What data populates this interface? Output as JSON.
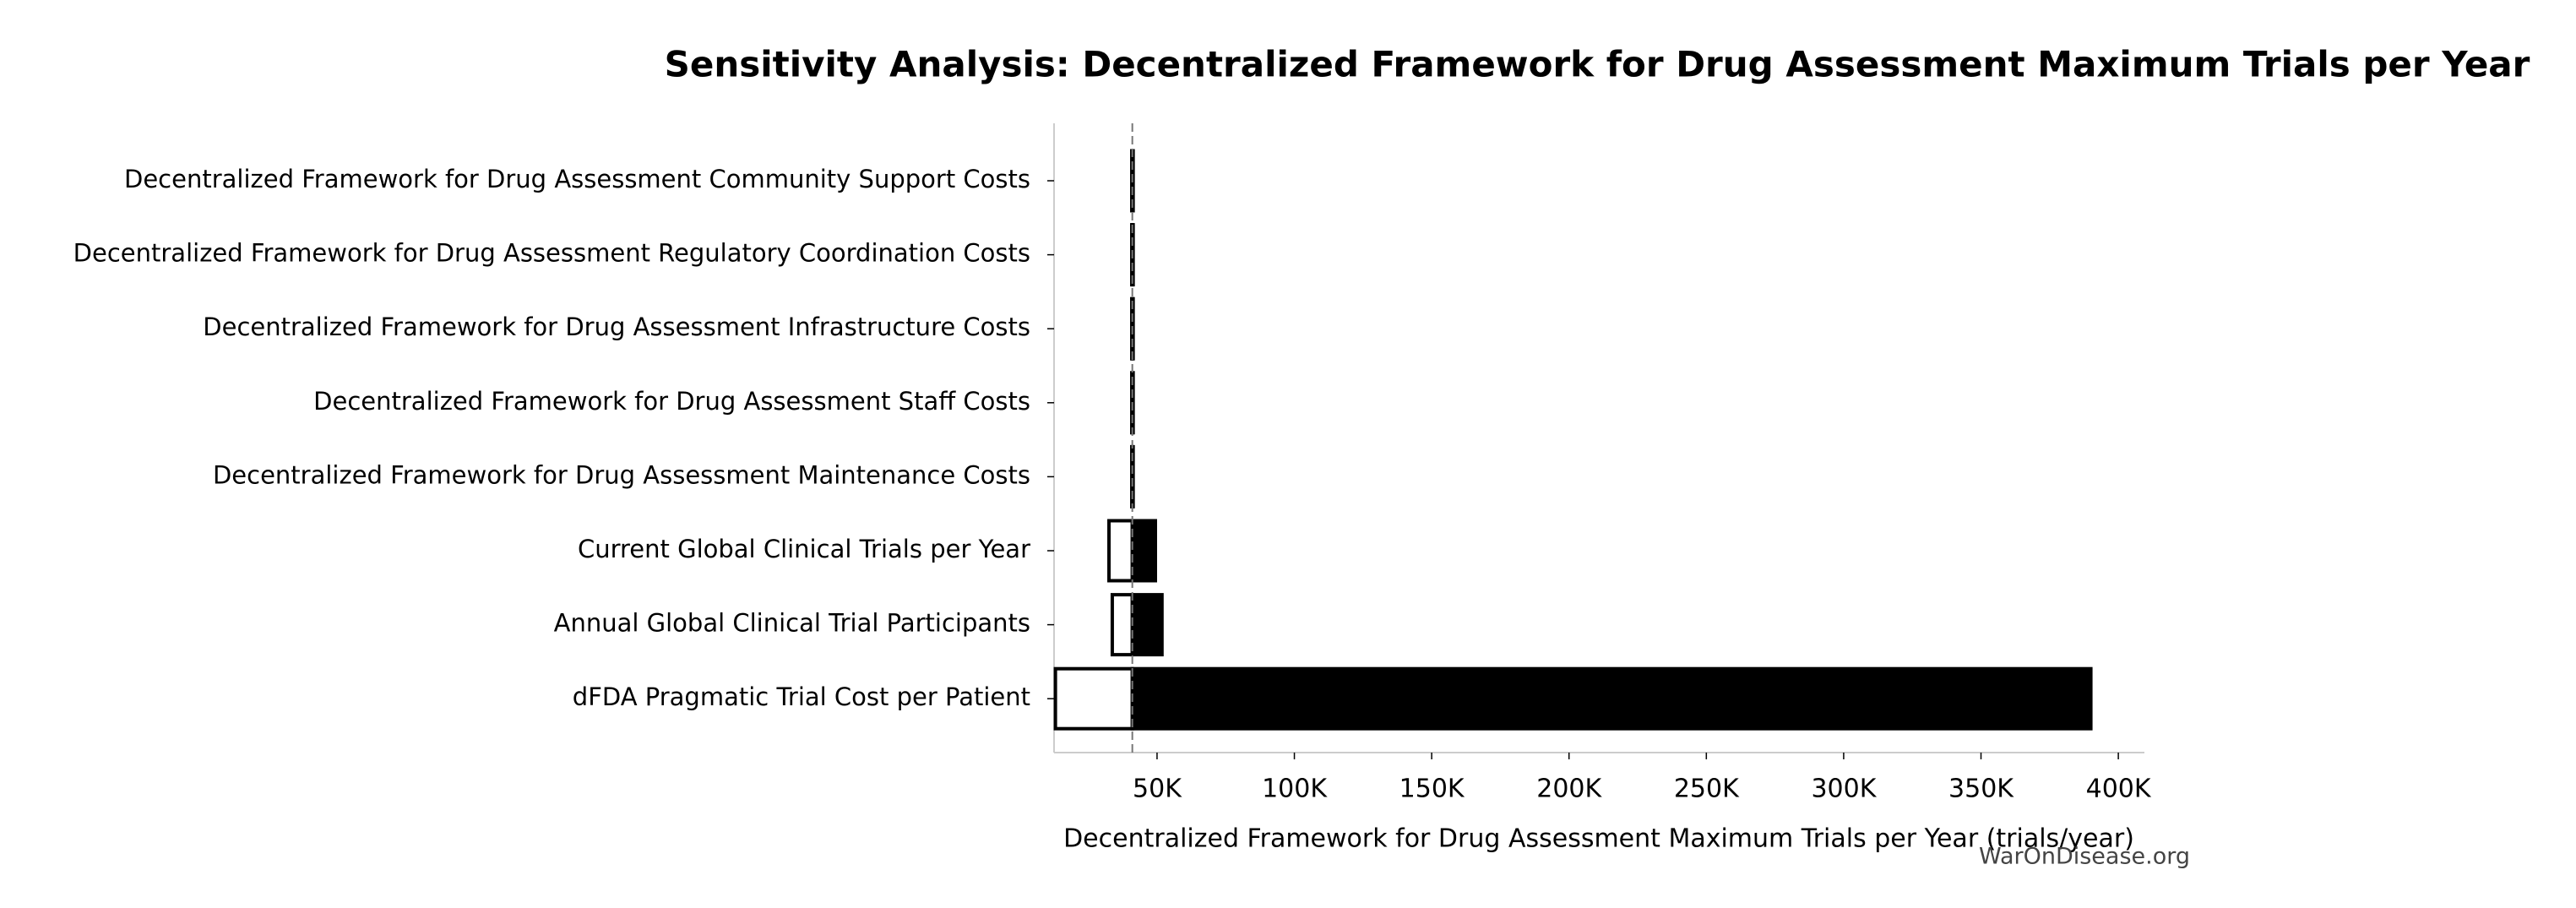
{
  "chart_data": {
    "type": "tornado",
    "title": "Sensitivity Analysis: Decentralized Framework for Drug Assessment Maximum Trials per Year",
    "x_label": "Decentralized Framework for Drug Assessment Maximum Trials per Year (trials/year)",
    "watermark": "WarOnDisease.org",
    "categories": [
      "Decentralized Framework for Drug Assessment Community Support Costs",
      "Decentralized Framework for Drug Assessment Regulatory Coordination Costs",
      "Decentralized Framework for Drug Assessment Infrastructure Costs",
      "Decentralized Framework for Drug Assessment Staff Costs",
      "Decentralized Framework for Drug Assessment Maintenance Costs",
      "Current Global Clinical Trials per Year",
      "Annual Global Clinical Trial Participants",
      "dFDA Pragmatic Trial Cost per Patient"
    ],
    "baseline": 41000,
    "low_values": [
      40800,
      40800,
      40800,
      40800,
      40800,
      32500,
      33700,
      13000
    ],
    "high_values": [
      41300,
      41300,
      41300,
      41300,
      41300,
      49400,
      51800,
      390000
    ],
    "low_color": "#ffffff",
    "high_color": "#000000",
    "xlim": [
      12500,
      409500
    ],
    "xticks": [
      {
        "value": 50000,
        "label": "50K"
      },
      {
        "value": 100000,
        "label": "100K"
      },
      {
        "value": 150000,
        "label": "150K"
      },
      {
        "value": 200000,
        "label": "200K"
      },
      {
        "value": 250000,
        "label": "250K"
      },
      {
        "value": 300000,
        "label": "300K"
      },
      {
        "value": 350000,
        "label": "350K"
      },
      {
        "value": 400000,
        "label": "400K"
      }
    ]
  }
}
